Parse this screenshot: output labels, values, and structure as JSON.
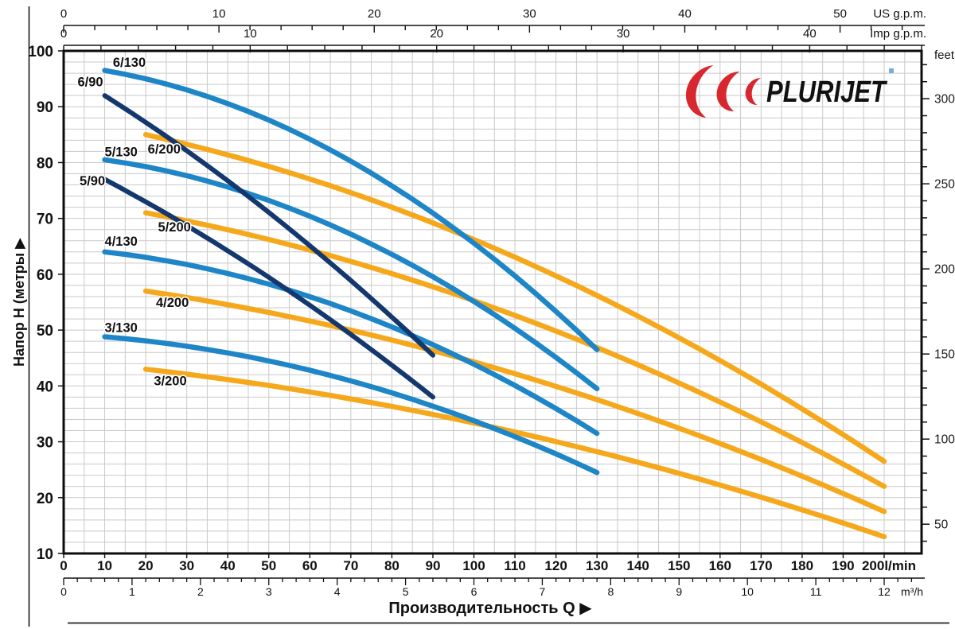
{
  "page_type": "pump-performance-catalog-chart",
  "logo": {
    "text": "PLURIJET",
    "text_color": "#1c4396",
    "swoosh_color": "#d7282f",
    "mark_color": "#74aedd"
  },
  "chart_data": {
    "type": "line",
    "title": "",
    "x_axis": {
      "title": "Производительность Q",
      "title_arrow": "▶",
      "primary_unit": "l/min",
      "primary_range": [
        0,
        200
      ],
      "primary_major_labels": [
        0,
        10,
        20,
        30,
        40,
        50,
        60,
        70,
        80,
        90,
        100,
        110,
        120,
        130,
        140,
        150,
        160,
        170,
        180,
        190,
        200
      ],
      "primary_last_label_suffix": "l/min",
      "secondary_unit": "m³/h",
      "secondary_major_labels": [
        0,
        1,
        2,
        3,
        4,
        5,
        6,
        7,
        8,
        9,
        10,
        11,
        12
      ],
      "secondary_minor_step": 0.2,
      "lmin_per_m3h": 16.667
    },
    "y_axis": {
      "title": "Напор H (метры",
      "title_arrow": "▶",
      "primary_unit": "m",
      "primary_range": [
        10,
        100
      ],
      "primary_major_labels": [
        100,
        90,
        80,
        70,
        60,
        50,
        40,
        30,
        20,
        10
      ],
      "minor_grid_step_m": 2,
      "secondary_unit": "feet",
      "secondary_major_labels": [
        300,
        250,
        200,
        150,
        100,
        50
      ],
      "secondary_minor_step": 10,
      "m_per_foot": 0.3048
    },
    "top_axes": [
      {
        "unit": "US g.p.m.",
        "major_labels": [
          0,
          10,
          20,
          30,
          40,
          50
        ],
        "minor_step": 2,
        "lmin_per_unit": 3.785
      },
      {
        "unit": "Imp g.p.m.",
        "major_labels": [
          0,
          10,
          20,
          30,
          40
        ],
        "minor_step": 2,
        "lmin_per_unit": 4.546
      }
    ],
    "grid": {
      "on": true,
      "x_step_lmin": 5,
      "y_step_m": 2,
      "color": "#c9c9c9"
    },
    "legend_position": "labels-on-curves",
    "series": [
      {
        "name": "6/130",
        "color": "#1e86c7",
        "q_start": 10,
        "q_end": 130,
        "h_start": 96.5,
        "h_end": 46.5,
        "curvature_k": 0.7,
        "label_q": 16,
        "label_h": 98
      },
      {
        "name": "5/130",
        "color": "#1e86c7",
        "q_start": 10,
        "q_end": 130,
        "h_start": 80.5,
        "h_end": 39.5,
        "curvature_k": 0.7,
        "label_q": 14,
        "label_h": 82
      },
      {
        "name": "4/130",
        "color": "#1e86c7",
        "q_start": 10,
        "q_end": 130,
        "h_start": 64,
        "h_end": 31.5,
        "curvature_k": 0.7,
        "label_q": 14,
        "label_h": 66
      },
      {
        "name": "3/130",
        "color": "#1e86c7",
        "q_start": 10,
        "q_end": 130,
        "h_start": 48.8,
        "h_end": 24.5,
        "curvature_k": 0.7,
        "label_q": 14,
        "label_h": 50.5
      },
      {
        "name": "6/90",
        "color": "#14386e",
        "q_start": 10,
        "q_end": 90,
        "h_start": 92,
        "h_end": 45.5,
        "curvature_k": 0.2,
        "label_q": 6.5,
        "label_h": 94.5
      },
      {
        "name": "5/90",
        "color": "#14386e",
        "q_start": 10,
        "q_end": 90,
        "h_start": 77,
        "h_end": 38,
        "curvature_k": 0.2,
        "label_q": 7,
        "label_h": 76.8
      },
      {
        "name": "6/200",
        "color": "#f6a81c",
        "q_start": 20,
        "q_end": 200,
        "h_start": 85,
        "h_end": 26.5,
        "curvature_k": 0.5,
        "label_q": 24.5,
        "label_h": 82.5
      },
      {
        "name": "5/200",
        "color": "#f6a81c",
        "q_start": 20,
        "q_end": 200,
        "h_start": 71,
        "h_end": 22,
        "curvature_k": 0.5,
        "label_q": 27,
        "label_h": 68.5
      },
      {
        "name": "4/200",
        "color": "#f6a81c",
        "q_start": 20,
        "q_end": 200,
        "h_start": 57,
        "h_end": 17.5,
        "curvature_k": 0.5,
        "label_q": 26.5,
        "label_h": 55
      },
      {
        "name": "3/200",
        "color": "#f6a81c",
        "q_start": 20,
        "q_end": 200,
        "h_start": 43,
        "h_end": 13,
        "curvature_k": 0.5,
        "label_q": 26,
        "label_h": 41
      }
    ],
    "draw_order_note": "yellow under light-blue under navy"
  }
}
